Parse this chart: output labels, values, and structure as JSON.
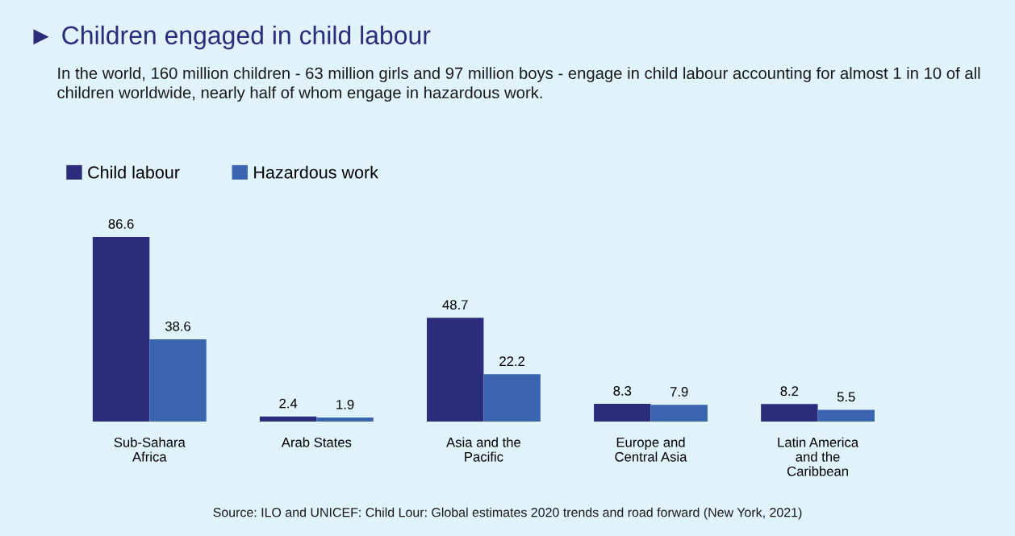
{
  "chart_data": {
    "type": "bar",
    "title": "► Children engaged in child labour",
    "subtitle": "In the world, 160 million children - 63 million girls and 97 million boys - engage in child labour accounting for almost 1 in 10 of all children worldwide, nearly half of whom engage in hazardous work.",
    "categories": [
      "Sub-Sahara\nAfrica",
      "Arab States",
      "Asia and the\nPacific",
      "Europe and\nCentral Asia",
      "Latin America\nand the\nCaribbean"
    ],
    "series": [
      {
        "name": "Child labour",
        "color": "#2b2d7c",
        "values": [
          86.6,
          2.4,
          48.7,
          8.3,
          8.2
        ]
      },
      {
        "name": "Hazardous work",
        "color": "#3a63b0",
        "values": [
          38.6,
          1.9,
          22.2,
          7.9,
          5.5
        ]
      }
    ],
    "data_labels": true,
    "legend": "top left",
    "grid": false,
    "annotations": [
      "Source: ILO and UNICEF: Child Lour: Global estimates 2020 trends and road forward (New York, 2021)"
    ]
  }
}
